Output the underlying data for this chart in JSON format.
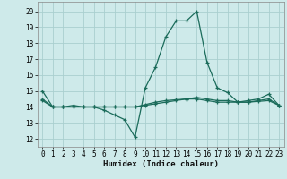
{
  "xlabel": "Humidex (Indice chaleur)",
  "background_color": "#ceeaea",
  "grid_color": "#aacfcf",
  "line_color": "#1a6b5a",
  "xlim": [
    -0.5,
    23.5
  ],
  "ylim": [
    11.5,
    20.6
  ],
  "yticks": [
    12,
    13,
    14,
    15,
    16,
    17,
    18,
    19,
    20
  ],
  "xticks": [
    0,
    1,
    2,
    3,
    4,
    5,
    6,
    7,
    8,
    9,
    10,
    11,
    12,
    13,
    14,
    15,
    16,
    17,
    18,
    19,
    20,
    21,
    22,
    23
  ],
  "series1_x": [
    0,
    1,
    2,
    3,
    4,
    5,
    6,
    7,
    8,
    9,
    10,
    11,
    12,
    13,
    14,
    15,
    16,
    17,
    18,
    19,
    20,
    21,
    22,
    23
  ],
  "series1_y": [
    15.0,
    14.0,
    14.0,
    14.0,
    14.0,
    14.0,
    13.8,
    13.5,
    13.2,
    12.1,
    15.2,
    16.5,
    18.4,
    19.4,
    19.4,
    20.0,
    16.8,
    15.2,
    14.9,
    14.3,
    14.4,
    14.5,
    14.8,
    14.1
  ],
  "series2_x": [
    0,
    1,
    2,
    3,
    4,
    5,
    6,
    7,
    8,
    9,
    10,
    11,
    12,
    13,
    14,
    15,
    16,
    17,
    18,
    19,
    20,
    21,
    22,
    23
  ],
  "series2_y": [
    14.5,
    14.0,
    14.0,
    14.1,
    14.0,
    14.0,
    14.0,
    14.0,
    14.0,
    14.0,
    14.1,
    14.2,
    14.3,
    14.4,
    14.5,
    14.6,
    14.5,
    14.4,
    14.4,
    14.3,
    14.3,
    14.4,
    14.5,
    14.1
  ],
  "series3_x": [
    0,
    1,
    2,
    3,
    4,
    5,
    6,
    7,
    8,
    9,
    10,
    11,
    12,
    13,
    14,
    15,
    16,
    17,
    18,
    19,
    20,
    21,
    22,
    23
  ],
  "series3_y": [
    14.4,
    14.0,
    14.0,
    14.0,
    14.0,
    14.0,
    14.0,
    14.0,
    14.0,
    14.0,
    14.15,
    14.3,
    14.4,
    14.45,
    14.5,
    14.5,
    14.4,
    14.3,
    14.3,
    14.3,
    14.3,
    14.35,
    14.4,
    14.1
  ]
}
